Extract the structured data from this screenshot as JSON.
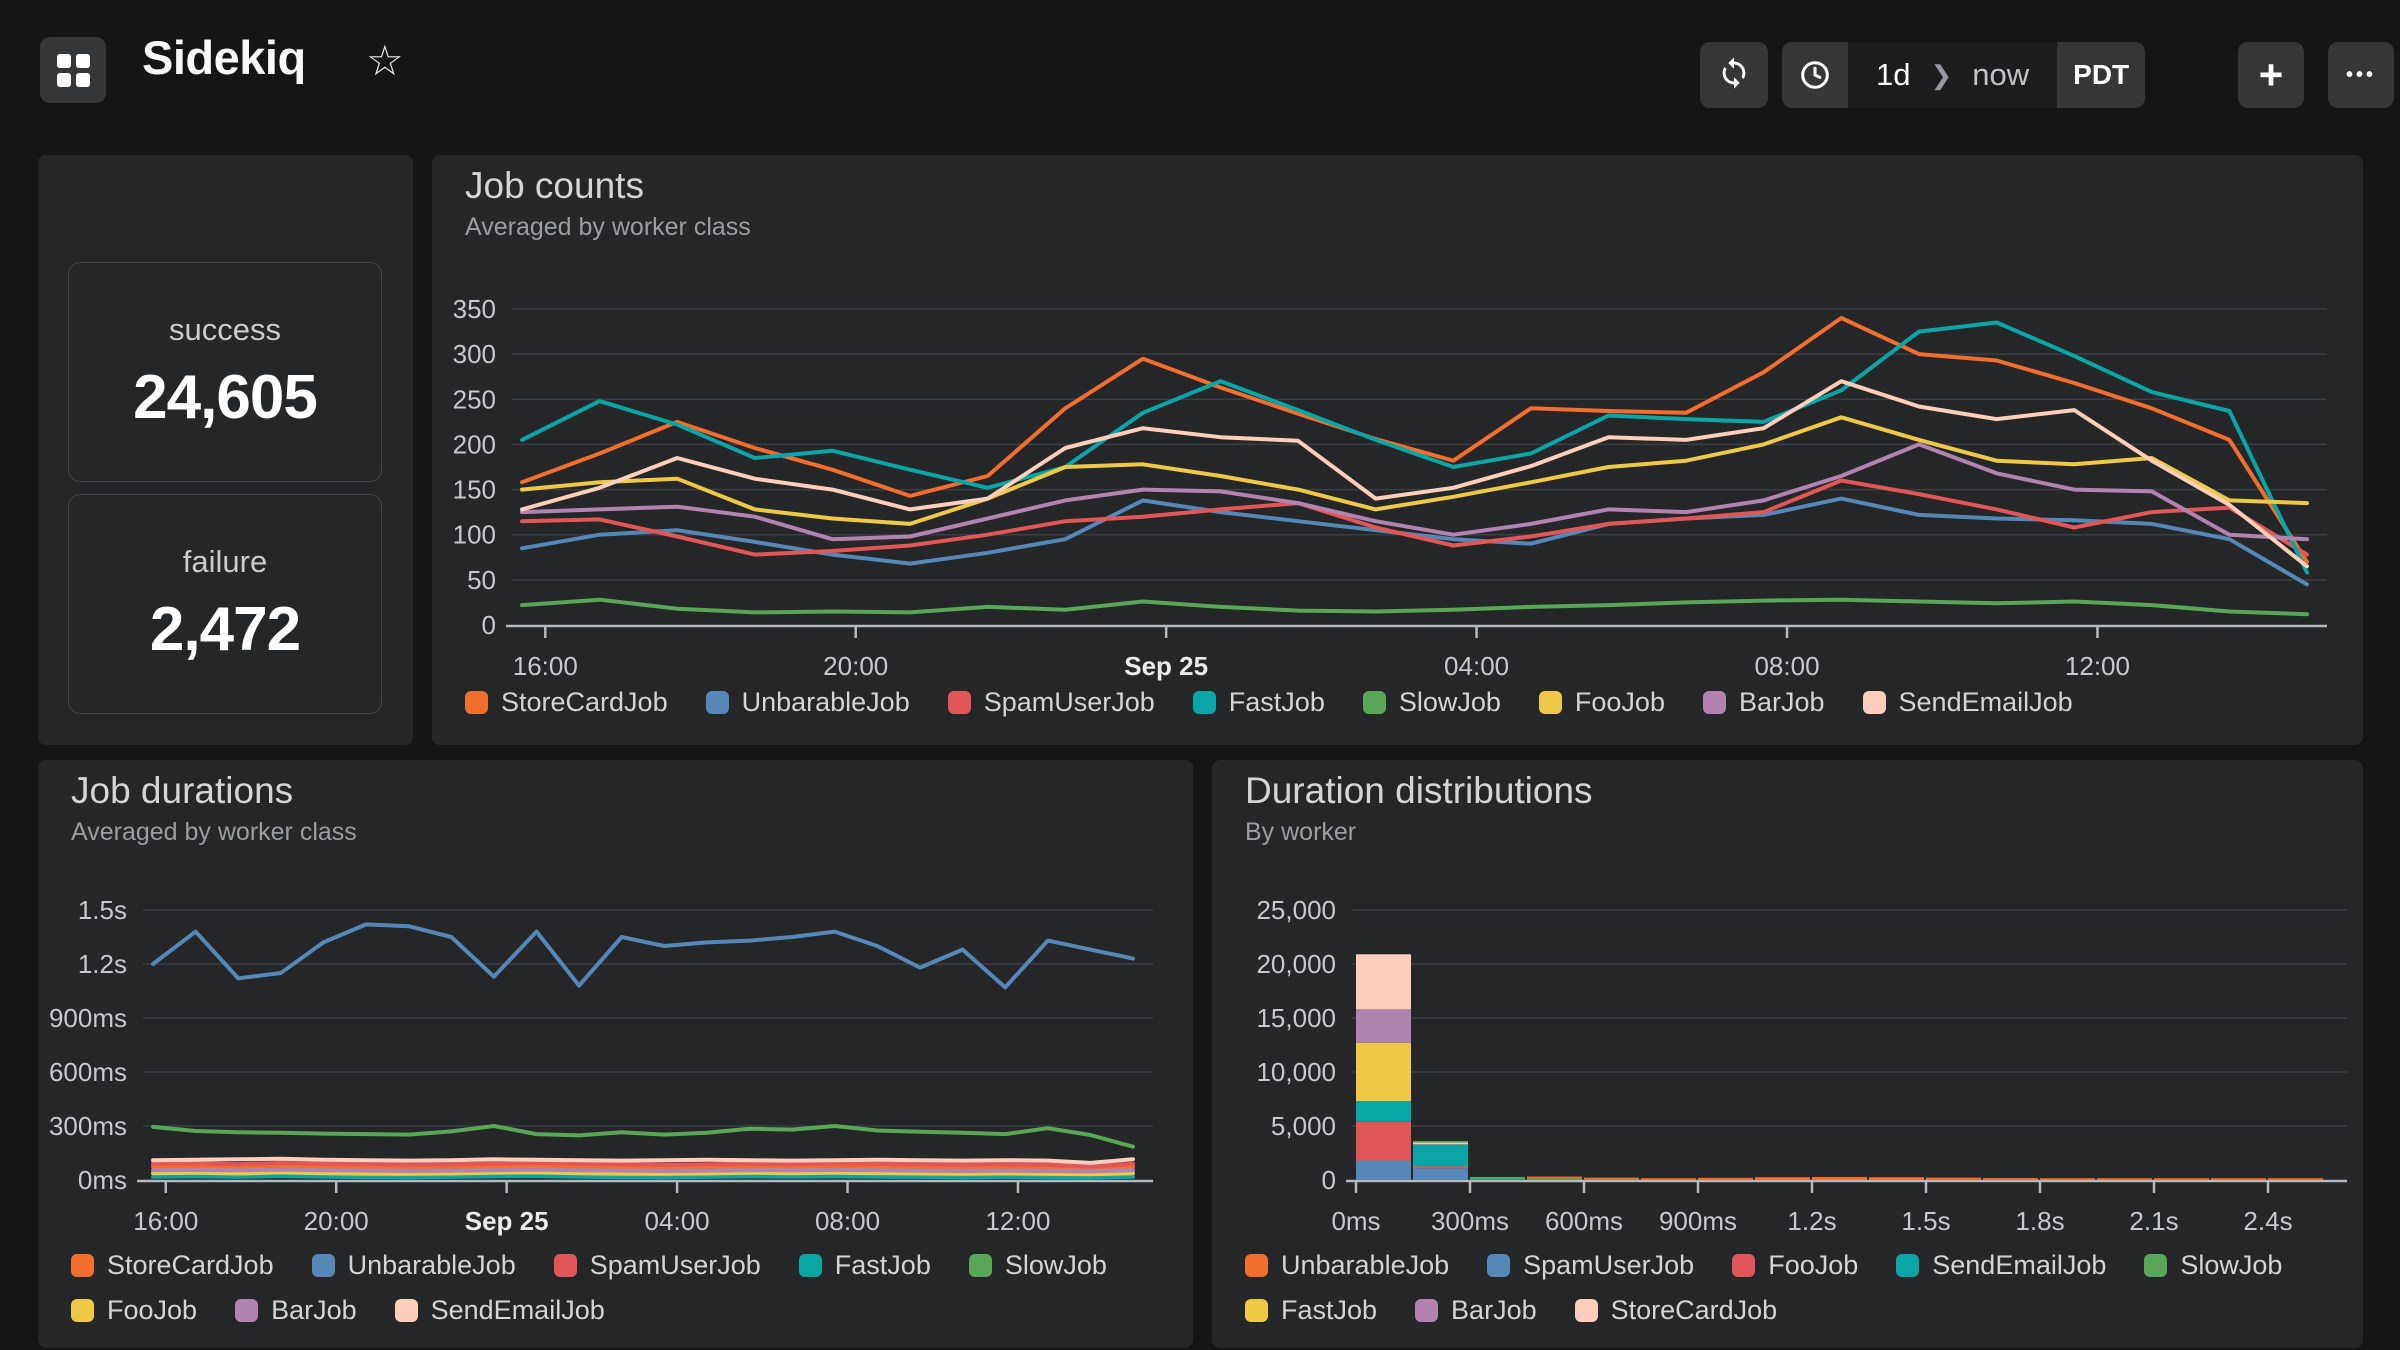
{
  "header": {
    "title": "Sidekiq",
    "range_from": "1d",
    "range_to": "now",
    "timezone": "PDT",
    "icons": {
      "star": "☆",
      "chevron": "❯",
      "plus": "+",
      "more": "•••"
    }
  },
  "stats": {
    "success": {
      "label": "success",
      "value": "24,605"
    },
    "failure": {
      "label": "failure",
      "value": "2,472"
    }
  },
  "chart_data": [
    {
      "id": "job_counts",
      "type": "line",
      "title": "Job counts",
      "subtitle": "Averaged by worker class",
      "points": 24,
      "x_start": "16:00",
      "xticks": [
        {
          "h": 0,
          "label": "16:00"
        },
        {
          "h": 4,
          "label": "20:00"
        },
        {
          "h": 8,
          "label": "Sep 25",
          "bold": true
        },
        {
          "h": 12,
          "label": "04:00"
        },
        {
          "h": 16,
          "label": "08:00"
        },
        {
          "h": 20,
          "label": "12:00"
        }
      ],
      "ylim": [
        0,
        350
      ],
      "yticks": [
        {
          "v": 0,
          "label": "0"
        },
        {
          "v": 50,
          "label": "50"
        },
        {
          "v": 100,
          "label": "100"
        },
        {
          "v": 150,
          "label": "150"
        },
        {
          "v": 200,
          "label": "200"
        },
        {
          "v": 250,
          "label": "250"
        },
        {
          "v": 300,
          "label": "300"
        },
        {
          "v": 350,
          "label": "350"
        }
      ],
      "legend_rows": [
        [
          "StoreCardJob",
          "UnbarableJob",
          "SpamUserJob",
          "FastJob",
          "SlowJob",
          "FooJob",
          "BarJob",
          "SendEmailJob"
        ]
      ],
      "series": [
        {
          "name": "StoreCardJob",
          "color": "#f06e2e",
          "values": [
            158,
            190,
            225,
            196,
            172,
            143,
            165,
            240,
            295,
            263,
            234,
            206,
            182,
            240,
            237,
            235,
            280,
            340,
            300,
            293,
            268,
            240,
            205,
            70
          ]
        },
        {
          "name": "UnbarableJob",
          "color": "#5787b7",
          "values": [
            85,
            100,
            105,
            92,
            78,
            68,
            80,
            95,
            138,
            125,
            115,
            105,
            95,
            90,
            112,
            118,
            122,
            140,
            122,
            118,
            116,
            112,
            95,
            45
          ]
        },
        {
          "name": "SpamUserJob",
          "color": "#e15759",
          "values": [
            115,
            117,
            98,
            78,
            82,
            88,
            100,
            115,
            120,
            128,
            135,
            108,
            88,
            98,
            112,
            118,
            125,
            160,
            145,
            128,
            108,
            125,
            130,
            78
          ]
        },
        {
          "name": "FastJob",
          "color": "#0aa5a5",
          "values": [
            205,
            248,
            222,
            185,
            193,
            172,
            152,
            175,
            235,
            270,
            238,
            205,
            175,
            190,
            232,
            228,
            225,
            260,
            325,
            335,
            298,
            258,
            237,
            58
          ]
        },
        {
          "name": "SlowJob",
          "color": "#5aa659",
          "values": [
            22,
            28,
            18,
            14,
            15,
            14,
            20,
            17,
            26,
            20,
            16,
            15,
            17,
            20,
            22,
            25,
            27,
            28,
            26,
            24,
            26,
            22,
            15,
            12
          ]
        },
        {
          "name": "FooJob",
          "color": "#edc945",
          "values": [
            150,
            158,
            162,
            128,
            118,
            112,
            140,
            175,
            178,
            165,
            150,
            128,
            142,
            158,
            175,
            182,
            200,
            230,
            205,
            182,
            178,
            185,
            138,
            135
          ]
        },
        {
          "name": "BarJob",
          "color": "#b184af",
          "values": [
            125,
            128,
            131,
            120,
            95,
            98,
            118,
            138,
            150,
            148,
            135,
            115,
            100,
            112,
            128,
            125,
            138,
            165,
            200,
            168,
            150,
            148,
            100,
            95
          ]
        },
        {
          "name": "SendEmailJob",
          "color": "#fccfbd",
          "values": [
            128,
            152,
            185,
            162,
            150,
            128,
            140,
            196,
            218,
            208,
            204,
            140,
            152,
            176,
            208,
            205,
            218,
            270,
            242,
            228,
            238,
            182,
            133,
            65
          ]
        }
      ]
    },
    {
      "id": "job_durations",
      "type": "line",
      "title": "Job durations",
      "subtitle": "Averaged by worker class",
      "points": 24,
      "unit": "ms",
      "xticks": [
        {
          "h": 0,
          "label": "16:00"
        },
        {
          "h": 4,
          "label": "20:00"
        },
        {
          "h": 8,
          "label": "Sep 25",
          "bold": true
        },
        {
          "h": 12,
          "label": "04:00"
        },
        {
          "h": 16,
          "label": "08:00"
        },
        {
          "h": 20,
          "label": "12:00"
        }
      ],
      "ylim": [
        0,
        1500
      ],
      "yticks": [
        {
          "v": 0,
          "label": "0ms"
        },
        {
          "v": 300,
          "label": "300ms"
        },
        {
          "v": 600,
          "label": "600ms"
        },
        {
          "v": 900,
          "label": "900ms"
        },
        {
          "v": 1200,
          "label": "1.2s"
        },
        {
          "v": 1500,
          "label": "1.5s"
        }
      ],
      "legend_rows": [
        [
          "StoreCardJob",
          "UnbarableJob",
          "SpamUserJob",
          "FastJob",
          "SlowJob"
        ],
        [
          "FooJob",
          "BarJob",
          "SendEmailJob"
        ]
      ],
      "series": [
        {
          "name": "StoreCardJob",
          "color": "#f06e2e",
          "values": [
            75,
            76,
            74,
            78,
            75,
            72,
            70,
            72,
            75,
            78,
            74,
            72,
            70,
            72,
            75,
            74,
            76,
            75,
            72,
            70,
            72,
            70,
            65,
            75
          ]
        },
        {
          "name": "UnbarableJob",
          "color": "#5787b7",
          "values": [
            1200,
            1380,
            1120,
            1150,
            1320,
            1420,
            1410,
            1350,
            1130,
            1380,
            1080,
            1350,
            1300,
            1320,
            1330,
            1350,
            1380,
            1300,
            1180,
            1280,
            1070,
            1330,
            1280,
            1230
          ]
        },
        {
          "name": "SpamUserJob",
          "color": "#e15759",
          "values": [
            90,
            92,
            88,
            95,
            90,
            88,
            85,
            88,
            92,
            95,
            90,
            88,
            85,
            88,
            90,
            88,
            92,
            90,
            88,
            85,
            88,
            85,
            75,
            90
          ]
        },
        {
          "name": "FastJob",
          "color": "#0aa5a5",
          "values": [
            18,
            20,
            17,
            22,
            18,
            16,
            15,
            17,
            20,
            22,
            18,
            16,
            15,
            17,
            20,
            18,
            20,
            18,
            17,
            15,
            17,
            15,
            14,
            18
          ]
        },
        {
          "name": "SlowJob",
          "color": "#5aa659",
          "values": [
            295,
            272,
            265,
            262,
            258,
            255,
            252,
            270,
            300,
            255,
            248,
            265,
            252,
            262,
            285,
            280,
            300,
            275,
            268,
            262,
            255,
            288,
            250,
            185
          ]
        },
        {
          "name": "FooJob",
          "color": "#edc945",
          "values": [
            38,
            40,
            36,
            42,
            38,
            35,
            34,
            36,
            40,
            42,
            38,
            35,
            34,
            36,
            40,
            38,
            40,
            38,
            36,
            34,
            36,
            34,
            32,
            38
          ]
        },
        {
          "name": "BarJob",
          "color": "#b184af",
          "values": [
            55,
            56,
            54,
            58,
            55,
            52,
            50,
            52,
            55,
            58,
            54,
            52,
            50,
            52,
            55,
            54,
            56,
            55,
            52,
            50,
            52,
            50,
            48,
            55
          ]
        },
        {
          "name": "SendEmailJob",
          "color": "#fccfbd",
          "values": [
            110,
            112,
            115,
            118,
            112,
            110,
            108,
            110,
            115,
            112,
            110,
            108,
            110,
            112,
            110,
            108,
            110,
            112,
            110,
            108,
            110,
            108,
            95,
            115
          ]
        }
      ]
    },
    {
      "id": "duration_distributions",
      "type": "stacked-bar",
      "title": "Duration distributions",
      "subtitle": "By worker",
      "bucket_ms": 150,
      "buckets": 17,
      "xticks": [
        {
          "ms": 0,
          "label": "0ms"
        },
        {
          "ms": 300,
          "label": "300ms"
        },
        {
          "ms": 600,
          "label": "600ms"
        },
        {
          "ms": 900,
          "label": "900ms"
        },
        {
          "ms": 1200,
          "label": "1.2s"
        },
        {
          "ms": 1500,
          "label": "1.5s"
        },
        {
          "ms": 1800,
          "label": "1.8s"
        },
        {
          "ms": 2100,
          "label": "2.1s"
        },
        {
          "ms": 2400,
          "label": "2.4s"
        }
      ],
      "ylim": [
        0,
        25000
      ],
      "yticks": [
        {
          "v": 0,
          "label": "0"
        },
        {
          "v": 5000,
          "label": "5,000"
        },
        {
          "v": 10000,
          "label": "10,000"
        },
        {
          "v": 15000,
          "label": "15,000"
        },
        {
          "v": 20000,
          "label": "20,000"
        },
        {
          "v": 25000,
          "label": "25,000"
        }
      ],
      "legend_rows": [
        [
          "UnbarableJob",
          "SpamUserJob",
          "FooJob",
          "SendEmailJob",
          "SlowJob"
        ],
        [
          "FastJob",
          "BarJob",
          "StoreCardJob"
        ]
      ],
      "series": [
        {
          "name": "SpamUserJob",
          "color": "#5787b7",
          "values": [
            1800,
            1100,
            0,
            0,
            0,
            0,
            0,
            0,
            0,
            0,
            0,
            0,
            0,
            0,
            0,
            0,
            0
          ]
        },
        {
          "name": "FooJob",
          "color": "#e15759",
          "values": [
            3600,
            150,
            0,
            0,
            0,
            0,
            0,
            0,
            0,
            0,
            0,
            0,
            0,
            0,
            0,
            0,
            0
          ]
        },
        {
          "name": "SendEmailJob",
          "color": "#0aa5a5",
          "values": [
            1900,
            2000,
            80,
            0,
            0,
            0,
            0,
            0,
            0,
            0,
            0,
            0,
            0,
            0,
            0,
            0,
            0
          ]
        },
        {
          "name": "FastJob",
          "color": "#edc945",
          "values": [
            5400,
            0,
            0,
            0,
            0,
            0,
            0,
            0,
            0,
            0,
            0,
            0,
            0,
            0,
            0,
            0,
            0
          ]
        },
        {
          "name": "BarJob",
          "color": "#b184af",
          "values": [
            3100,
            80,
            0,
            0,
            0,
            0,
            0,
            0,
            0,
            0,
            0,
            0,
            0,
            0,
            0,
            0,
            0
          ]
        },
        {
          "name": "StoreCardJob",
          "color": "#fccfbd",
          "values": [
            5100,
            120,
            0,
            0,
            0,
            0,
            0,
            0,
            0,
            0,
            0,
            0,
            0,
            0,
            0,
            0,
            0
          ]
        },
        {
          "name": "SlowJob",
          "color": "#5aa659",
          "values": [
            0,
            100,
            200,
            150,
            50,
            0,
            0,
            0,
            0,
            0,
            0,
            0,
            0,
            0,
            0,
            0,
            0
          ]
        },
        {
          "name": "UnbarableJob",
          "color": "#f06e2e",
          "values": [
            0,
            0,
            0,
            60,
            100,
            150,
            200,
            260,
            280,
            260,
            220,
            180,
            150,
            120,
            100,
            80,
            60
          ]
        }
      ]
    }
  ]
}
